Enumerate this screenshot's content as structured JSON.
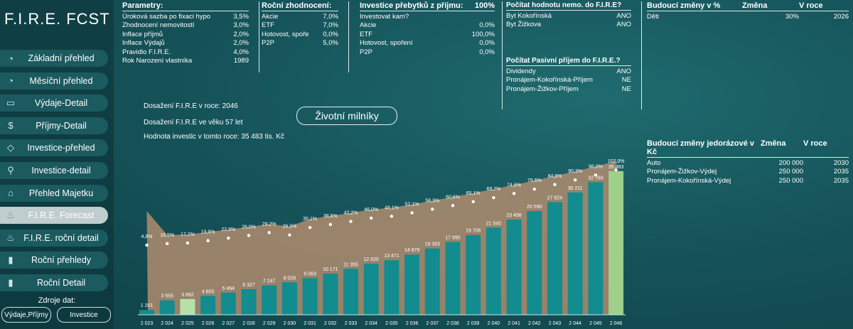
{
  "app": {
    "title": "F.I.R.E. FCST"
  },
  "nav": [
    {
      "icon": "pie-chart-icon",
      "glyph": "◔",
      "label": "Základní přehled",
      "active": false
    },
    {
      "icon": "pie-chart-icon",
      "glyph": "◔",
      "label": "Měsíční přehled",
      "active": false
    },
    {
      "icon": "money-icon",
      "glyph": "▭",
      "label": "Výdaje-Detail",
      "active": false
    },
    {
      "icon": "dollar-icon",
      "glyph": "$",
      "label": "Příjmy-Detail",
      "active": false
    },
    {
      "icon": "diamond-icon",
      "glyph": "◇",
      "label": "Investice-přehled",
      "active": false
    },
    {
      "icon": "magnifier-icon",
      "glyph": "⚲",
      "label": "Investice-detail",
      "active": false
    },
    {
      "icon": "house-icon",
      "glyph": "⌂",
      "label": "Přehled Majetku",
      "active": false
    },
    {
      "icon": "fire-icon",
      "glyph": "♨",
      "label": "F.I.R.E. Forecast",
      "active": true
    },
    {
      "icon": "fire-icon",
      "glyph": "♨",
      "label": "F.I.R.E. roční detail",
      "active": false
    },
    {
      "icon": "bar-chart-icon",
      "glyph": "▮",
      "label": "Roční přehledy",
      "active": false
    },
    {
      "icon": "bar-chart-icon",
      "glyph": "▮",
      "label": "Roční Detail",
      "active": false
    }
  ],
  "sources": {
    "label": "Zdroje dat:",
    "btn1": "Výdaje,Příjmy",
    "btn2": "Investice"
  },
  "params": {
    "header": "Parametry:",
    "rows": [
      {
        "l": "Úroková sazba po fixaci hypo",
        "v": "3,5%"
      },
      {
        "l": "Zhodnocení nemovitostí",
        "v": "3,0%"
      },
      {
        "l": "Inflace příjmů",
        "v": "2,0%"
      },
      {
        "l": "Inflace Výdajů",
        "v": "2,0%"
      },
      {
        "l": "Pravidlo F.I.R.E.",
        "v": "4,0%"
      },
      {
        "l": "Rok Narození vlastníka",
        "v": "1989"
      }
    ]
  },
  "returns": {
    "header": "Roční zhodnocení:",
    "rows": [
      {
        "l": "Akcie",
        "v": "7,0%"
      },
      {
        "l": "ETF",
        "v": "7,0%"
      },
      {
        "l": "Hotovost, spoře",
        "v": "0,0%"
      },
      {
        "l": "P2P",
        "v": "5,0%"
      }
    ]
  },
  "surplus": {
    "header": "Investice přebytků z příjmu:",
    "header_v": "100%",
    "rows": [
      {
        "l": "Investovat kam?",
        "v": ""
      },
      {
        "l": "Akcie",
        "v": "0,0%"
      },
      {
        "l": "ETF",
        "v": "100,0%"
      },
      {
        "l": "Hotovost, spoření",
        "v": "0,0%"
      },
      {
        "l": "P2P",
        "v": "0,0%"
      }
    ]
  },
  "property_value": {
    "header": "Počítat hodnotu nemo. do F.I.R.E?",
    "rows": [
      {
        "l": "Byt Kokořínská",
        "v": "ANO"
      },
      {
        "l": "Byt Žižkova",
        "v": "ANO"
      }
    ]
  },
  "passive_income": {
    "header": "Počítat Pasivní příjem do F.I.R.E.?",
    "rows": [
      {
        "l": "Dividendy",
        "v": "ANO"
      },
      {
        "l": "Pronájem-Kokořínská-Příjem",
        "v": "NE"
      },
      {
        "l": "Pronájem-Žižkov-Příjem",
        "v": "NE"
      }
    ]
  },
  "future_pct": {
    "header": "Budoucí změny v %",
    "col1": "Změna",
    "col2": "V roce",
    "rows": [
      {
        "l": "Děti",
        "a": "30%",
        "b": "2026"
      }
    ]
  },
  "future_once": {
    "header": "Budoucí změny jedorázové v Kč",
    "col1": "Změna",
    "col2": "V roce",
    "rows": [
      {
        "l": "Auto",
        "a": "200 000",
        "b": "2030"
      },
      {
        "l": "Pronájem-Žižkov-Výdej",
        "a": "250 000",
        "b": "2035"
      },
      {
        "l": "Pronájem-Kokořínská-Výdej",
        "a": "250 000",
        "b": "2035"
      }
    ]
  },
  "fire_info": {
    "line1": "Dosažení F.I.R.E v roce: 2046",
    "line2": "Dosažení F.I.R.E ve věku 57 let",
    "line3": "Hodnota investic v tomto roce: 35 483 tis. Kč"
  },
  "milestones_button": "Životní milníky",
  "chart_data": {
    "type": "bar",
    "categories": [
      "2 023",
      "2 024",
      "2 025",
      "2 026",
      "2 027",
      "2 028",
      "2 029",
      "2 030",
      "2 031",
      "2 032",
      "2 033",
      "2 034",
      "2 035",
      "2 036",
      "2 037",
      "2 038",
      "2 039",
      "2 040",
      "2 041",
      "2 042",
      "2 043",
      "2 044",
      "2 045",
      "2 046"
    ],
    "values": [
      1201,
      3555,
      3892,
      4655,
      5464,
      6327,
      7247,
      8028,
      9063,
      10171,
      11355,
      12620,
      13471,
      14879,
      16383,
      17990,
      19706,
      21540,
      23498,
      25590,
      27824,
      30211,
      32760,
      35483
    ],
    "value_labels": [
      "1 201",
      "3 555",
      "3 892",
      "4 655",
      "5 464",
      "6 327",
      "7 247",
      "8 028",
      "9 063",
      "10 171",
      "11 355",
      "12 620",
      "13 471",
      "14 879",
      "16 383",
      "17 990",
      "19 706",
      "21 540",
      "23 498",
      "25 590",
      "27 824",
      "30 211",
      "32 760",
      "35 483"
    ],
    "fire_target_pct": [
      4.8,
      16.5,
      17.2,
      19.9,
      22.9,
      26.0,
      29.2,
      26.5,
      35.1,
      38.6,
      42.2,
      46.0,
      48.1,
      52.1,
      56.3,
      60.6,
      65.1,
      69.7,
      74.6,
      79.6,
      84.9,
      90.3,
      96.0,
      102.0
    ],
    "fire_target_labels": [
      "4,8%",
      "16,5%",
      "17,2%",
      "19,9%",
      "22,9%",
      "26,0%",
      "29,2%",
      "26,5%",
      "35,1%",
      "38,6%",
      "42,2%",
      "46,0%",
      "48,1%",
      "52,1%",
      "56,3%",
      "60,6%",
      "65,1%",
      "69,7%",
      "74,6%",
      "79,6%",
      "84,9%",
      "90,3%",
      "96,0%",
      "102,0%"
    ],
    "highlight": [
      2,
      23
    ],
    "colors": {
      "bar": "#138c8f",
      "highlight_2025": "#b7e0a9",
      "highlight_2046": "#9fd08a",
      "area": "#b08c6f"
    }
  }
}
